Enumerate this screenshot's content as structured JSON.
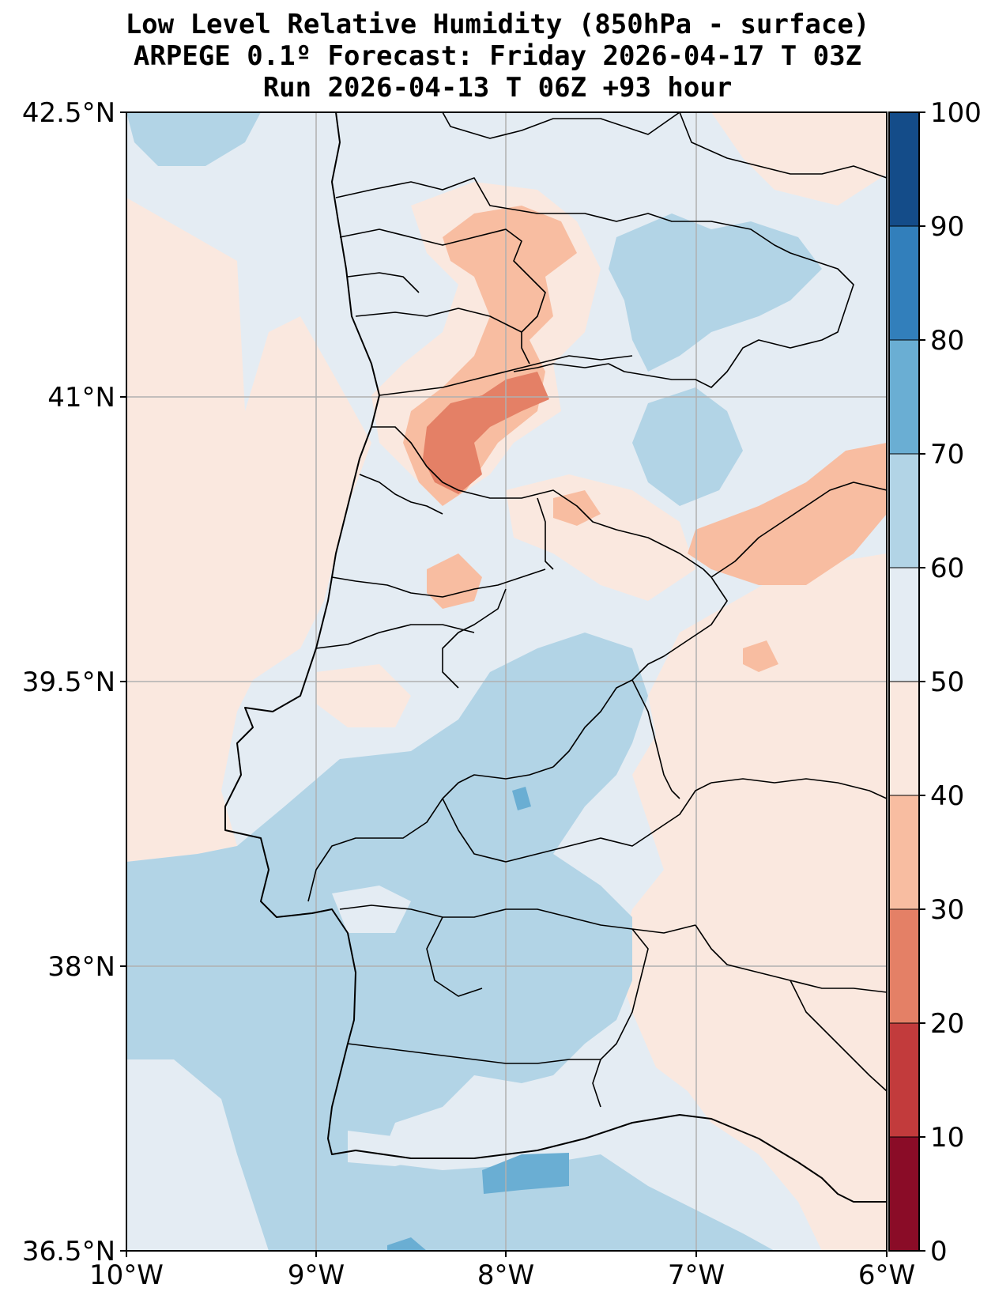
{
  "title": {
    "line1": "Low Level Relative Humidity (850hPa - surface)",
    "line2": "ARPEGE 0.1º Forecast: Friday 2026-04-17 T 03Z",
    "line3": "Run 2026-04-13 T 06Z +93 hour"
  },
  "map": {
    "lon_range": [
      -10,
      -6
    ],
    "lat_range": [
      36.5,
      42.5
    ],
    "x_ticks": [
      {
        "value": -10,
        "label": "10°W"
      },
      {
        "value": -9,
        "label": "9°W"
      },
      {
        "value": -8,
        "label": "8°W"
      },
      {
        "value": -7,
        "label": "7°W"
      },
      {
        "value": -6,
        "label": "6°W"
      }
    ],
    "y_ticks": [
      {
        "value": 42.5,
        "label": "42.5°N"
      },
      {
        "value": 41,
        "label": "41°N"
      },
      {
        "value": 39.5,
        "label": "39.5°N"
      },
      {
        "value": 38,
        "label": "38°N"
      },
      {
        "value": 36.5,
        "label": "36.5°N"
      }
    ],
    "grid": true
  },
  "colorbar": {
    "levels": [
      {
        "value": 0,
        "label": "0"
      },
      {
        "value": 10,
        "label": "10"
      },
      {
        "value": 20,
        "label": "20"
      },
      {
        "value": 30,
        "label": "30"
      },
      {
        "value": 40,
        "label": "40"
      },
      {
        "value": 50,
        "label": "50"
      },
      {
        "value": 60,
        "label": "60"
      },
      {
        "value": 70,
        "label": "70"
      },
      {
        "value": 80,
        "label": "80"
      },
      {
        "value": 90,
        "label": "90"
      },
      {
        "value": 100,
        "label": "100"
      }
    ],
    "colors": [
      "#8a0c27",
      "#c23b3c",
      "#e48066",
      "#f8bda1",
      "#fae8df",
      "#e4ecf3",
      "#b2d4e6",
      "#6aaed3",
      "#327fbb",
      "#144c89"
    ]
  }
}
